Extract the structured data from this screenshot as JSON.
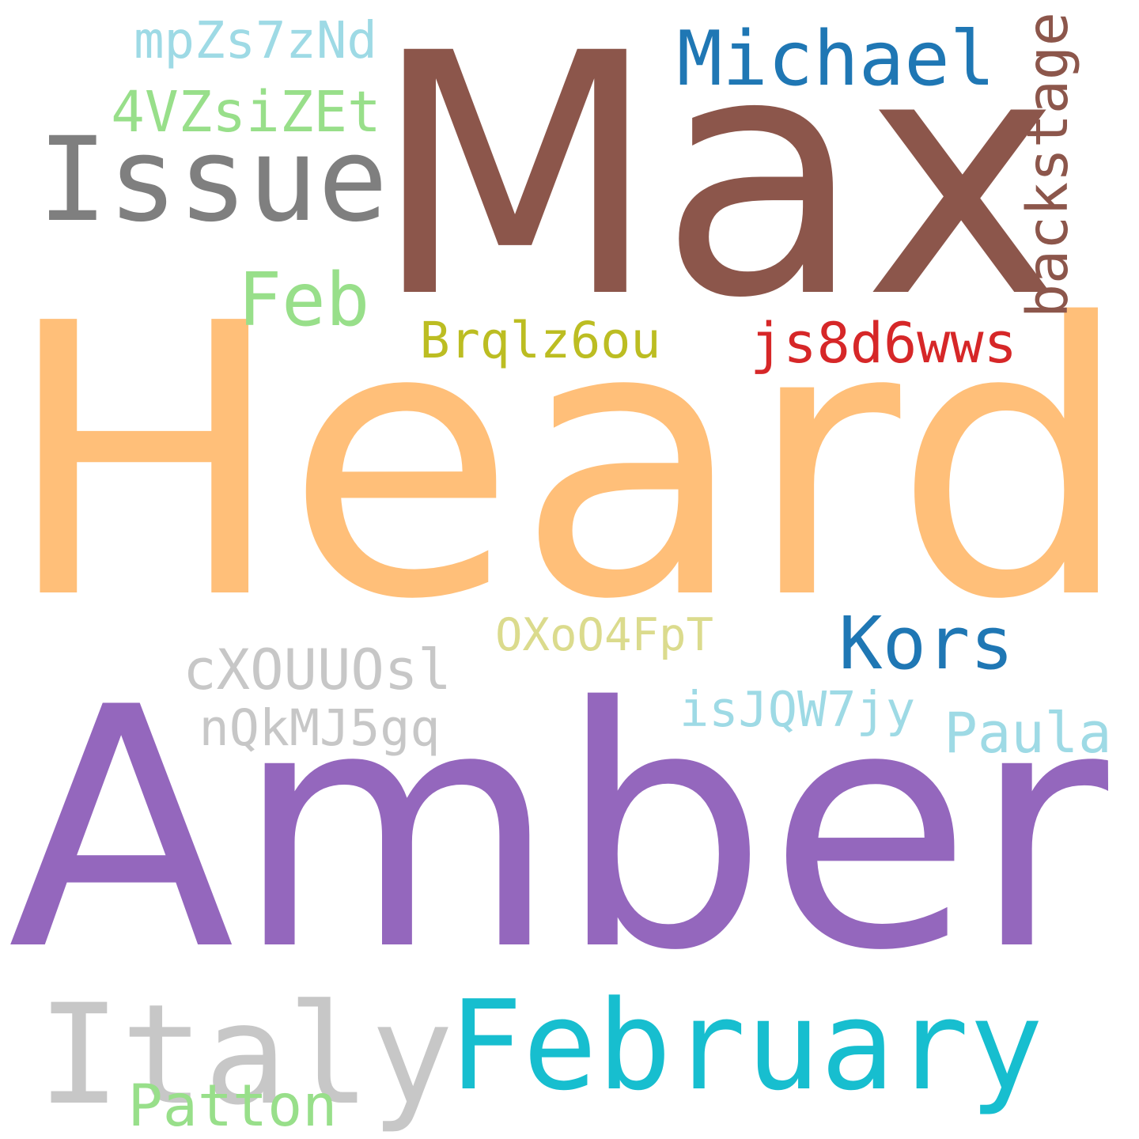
{
  "words": [
    {
      "text": "Max",
      "color": "#8c564b"
    },
    {
      "text": "Heard",
      "color": "#ffbf79"
    },
    {
      "text": "Amber",
      "color": "#9467bd"
    },
    {
      "text": "Issue",
      "color": "#7f7f7f"
    },
    {
      "text": "Michael",
      "color": "#1f77b4"
    },
    {
      "text": "mpZs7zNd",
      "color": "#9edae5"
    },
    {
      "text": "4VZsiZEt",
      "color": "#98df8a"
    },
    {
      "text": "Feb",
      "color": "#98df8a"
    },
    {
      "text": "backstage",
      "color": "#8c564b"
    },
    {
      "text": "Brqlz6ou",
      "color": "#bcbd22"
    },
    {
      "text": "js8d6wws",
      "color": "#d62728"
    },
    {
      "text": "OXoO4FpT",
      "color": "#dbdb8d"
    },
    {
      "text": "Kors",
      "color": "#1f77b4"
    },
    {
      "text": "cXOUUOsl",
      "color": "#c7c7c7"
    },
    {
      "text": "nQkMJ5gq",
      "color": "#c7c7c7"
    },
    {
      "text": "isJQW7jy",
      "color": "#9edae5"
    },
    {
      "text": "Paula",
      "color": "#9edae5"
    },
    {
      "text": "Italy",
      "color": "#c7c7c7"
    },
    {
      "text": "February",
      "color": "#17becf"
    },
    {
      "text": "Patton",
      "color": "#98df8a"
    }
  ]
}
